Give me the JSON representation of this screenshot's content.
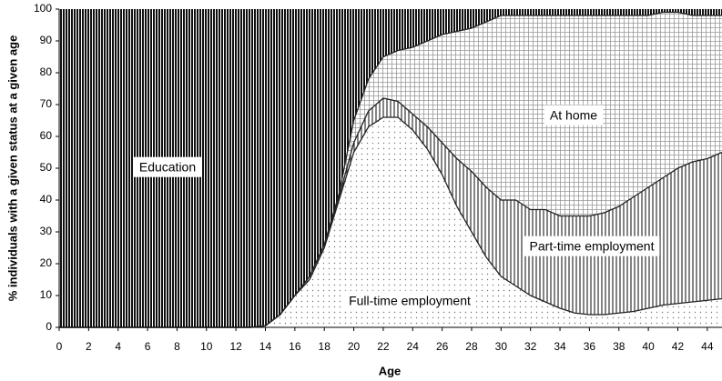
{
  "chart_data": {
    "type": "stacked-area",
    "x_label": "Age",
    "y_label": "% individuals with a given status at a given age",
    "x": [
      0,
      1,
      2,
      3,
      4,
      5,
      6,
      7,
      8,
      9,
      10,
      11,
      12,
      13,
      14,
      15,
      16,
      17,
      18,
      19,
      20,
      21,
      22,
      23,
      24,
      25,
      26,
      27,
      28,
      29,
      30,
      31,
      32,
      33,
      34,
      35,
      36,
      37,
      38,
      39,
      40,
      41,
      42,
      43,
      44,
      45
    ],
    "series": [
      {
        "name": "Full-time employment",
        "color": "#777777",
        "pattern": "dots",
        "values": [
          0,
          0,
          0,
          0,
          0,
          0,
          0,
          0,
          0,
          0,
          0,
          0,
          0,
          0,
          0.5,
          4,
          10,
          15,
          25,
          40,
          55,
          63,
          66,
          66,
          62,
          56,
          48,
          38,
          30,
          22,
          16,
          13,
          10,
          8,
          6,
          4.5,
          4,
          4,
          4.5,
          5,
          6,
          7,
          7.5,
          8,
          8.5,
          9
        ]
      },
      {
        "name": "Part-time employment",
        "color": "#333333",
        "pattern": "stripes",
        "values": [
          0,
          0,
          0,
          0,
          0,
          0,
          0,
          0,
          0,
          0,
          0,
          0,
          0,
          0,
          0,
          0,
          0,
          1,
          1,
          1,
          3,
          5,
          6,
          5,
          5,
          7,
          10,
          15,
          19,
          22,
          24,
          27,
          27,
          29,
          29,
          30.5,
          31,
          32,
          33.5,
          36,
          38,
          40,
          42.5,
          44,
          44.5,
          46
        ]
      },
      {
        "name": "At home",
        "color": "#999999",
        "pattern": "grid",
        "values": [
          0,
          0,
          0,
          0,
          0,
          0,
          0,
          0,
          0,
          0,
          0,
          0,
          0,
          0,
          0,
          0,
          0,
          0,
          0,
          1,
          7,
          10,
          13,
          16,
          21,
          27,
          34,
          40,
          45,
          52,
          58,
          58,
          61,
          61,
          63,
          63,
          63,
          62,
          60,
          57,
          54,
          52,
          49,
          46,
          45,
          43
        ]
      },
      {
        "name": "Education",
        "color": "#111111",
        "pattern": "dense-stripes",
        "values": [
          100,
          100,
          100,
          100,
          100,
          100,
          100,
          100,
          100,
          100,
          100,
          100,
          100,
          100,
          99.5,
          96,
          90,
          84,
          74,
          58,
          35,
          22,
          15,
          13,
          12,
          10,
          8,
          7,
          6,
          4,
          2,
          2,
          2,
          2,
          2,
          2,
          2,
          2,
          2,
          2,
          2,
          1,
          1,
          2,
          2,
          2
        ]
      }
    ],
    "xlim": [
      0,
      45
    ],
    "xticks": [
      0,
      2,
      4,
      6,
      8,
      10,
      12,
      14,
      16,
      18,
      20,
      22,
      24,
      26,
      28,
      30,
      32,
      34,
      36,
      38,
      40,
      42,
      44
    ],
    "ylim": [
      0,
      100
    ],
    "yticks": [
      0,
      10,
      20,
      30,
      40,
      50,
      60,
      70,
      80,
      90,
      100
    ]
  }
}
